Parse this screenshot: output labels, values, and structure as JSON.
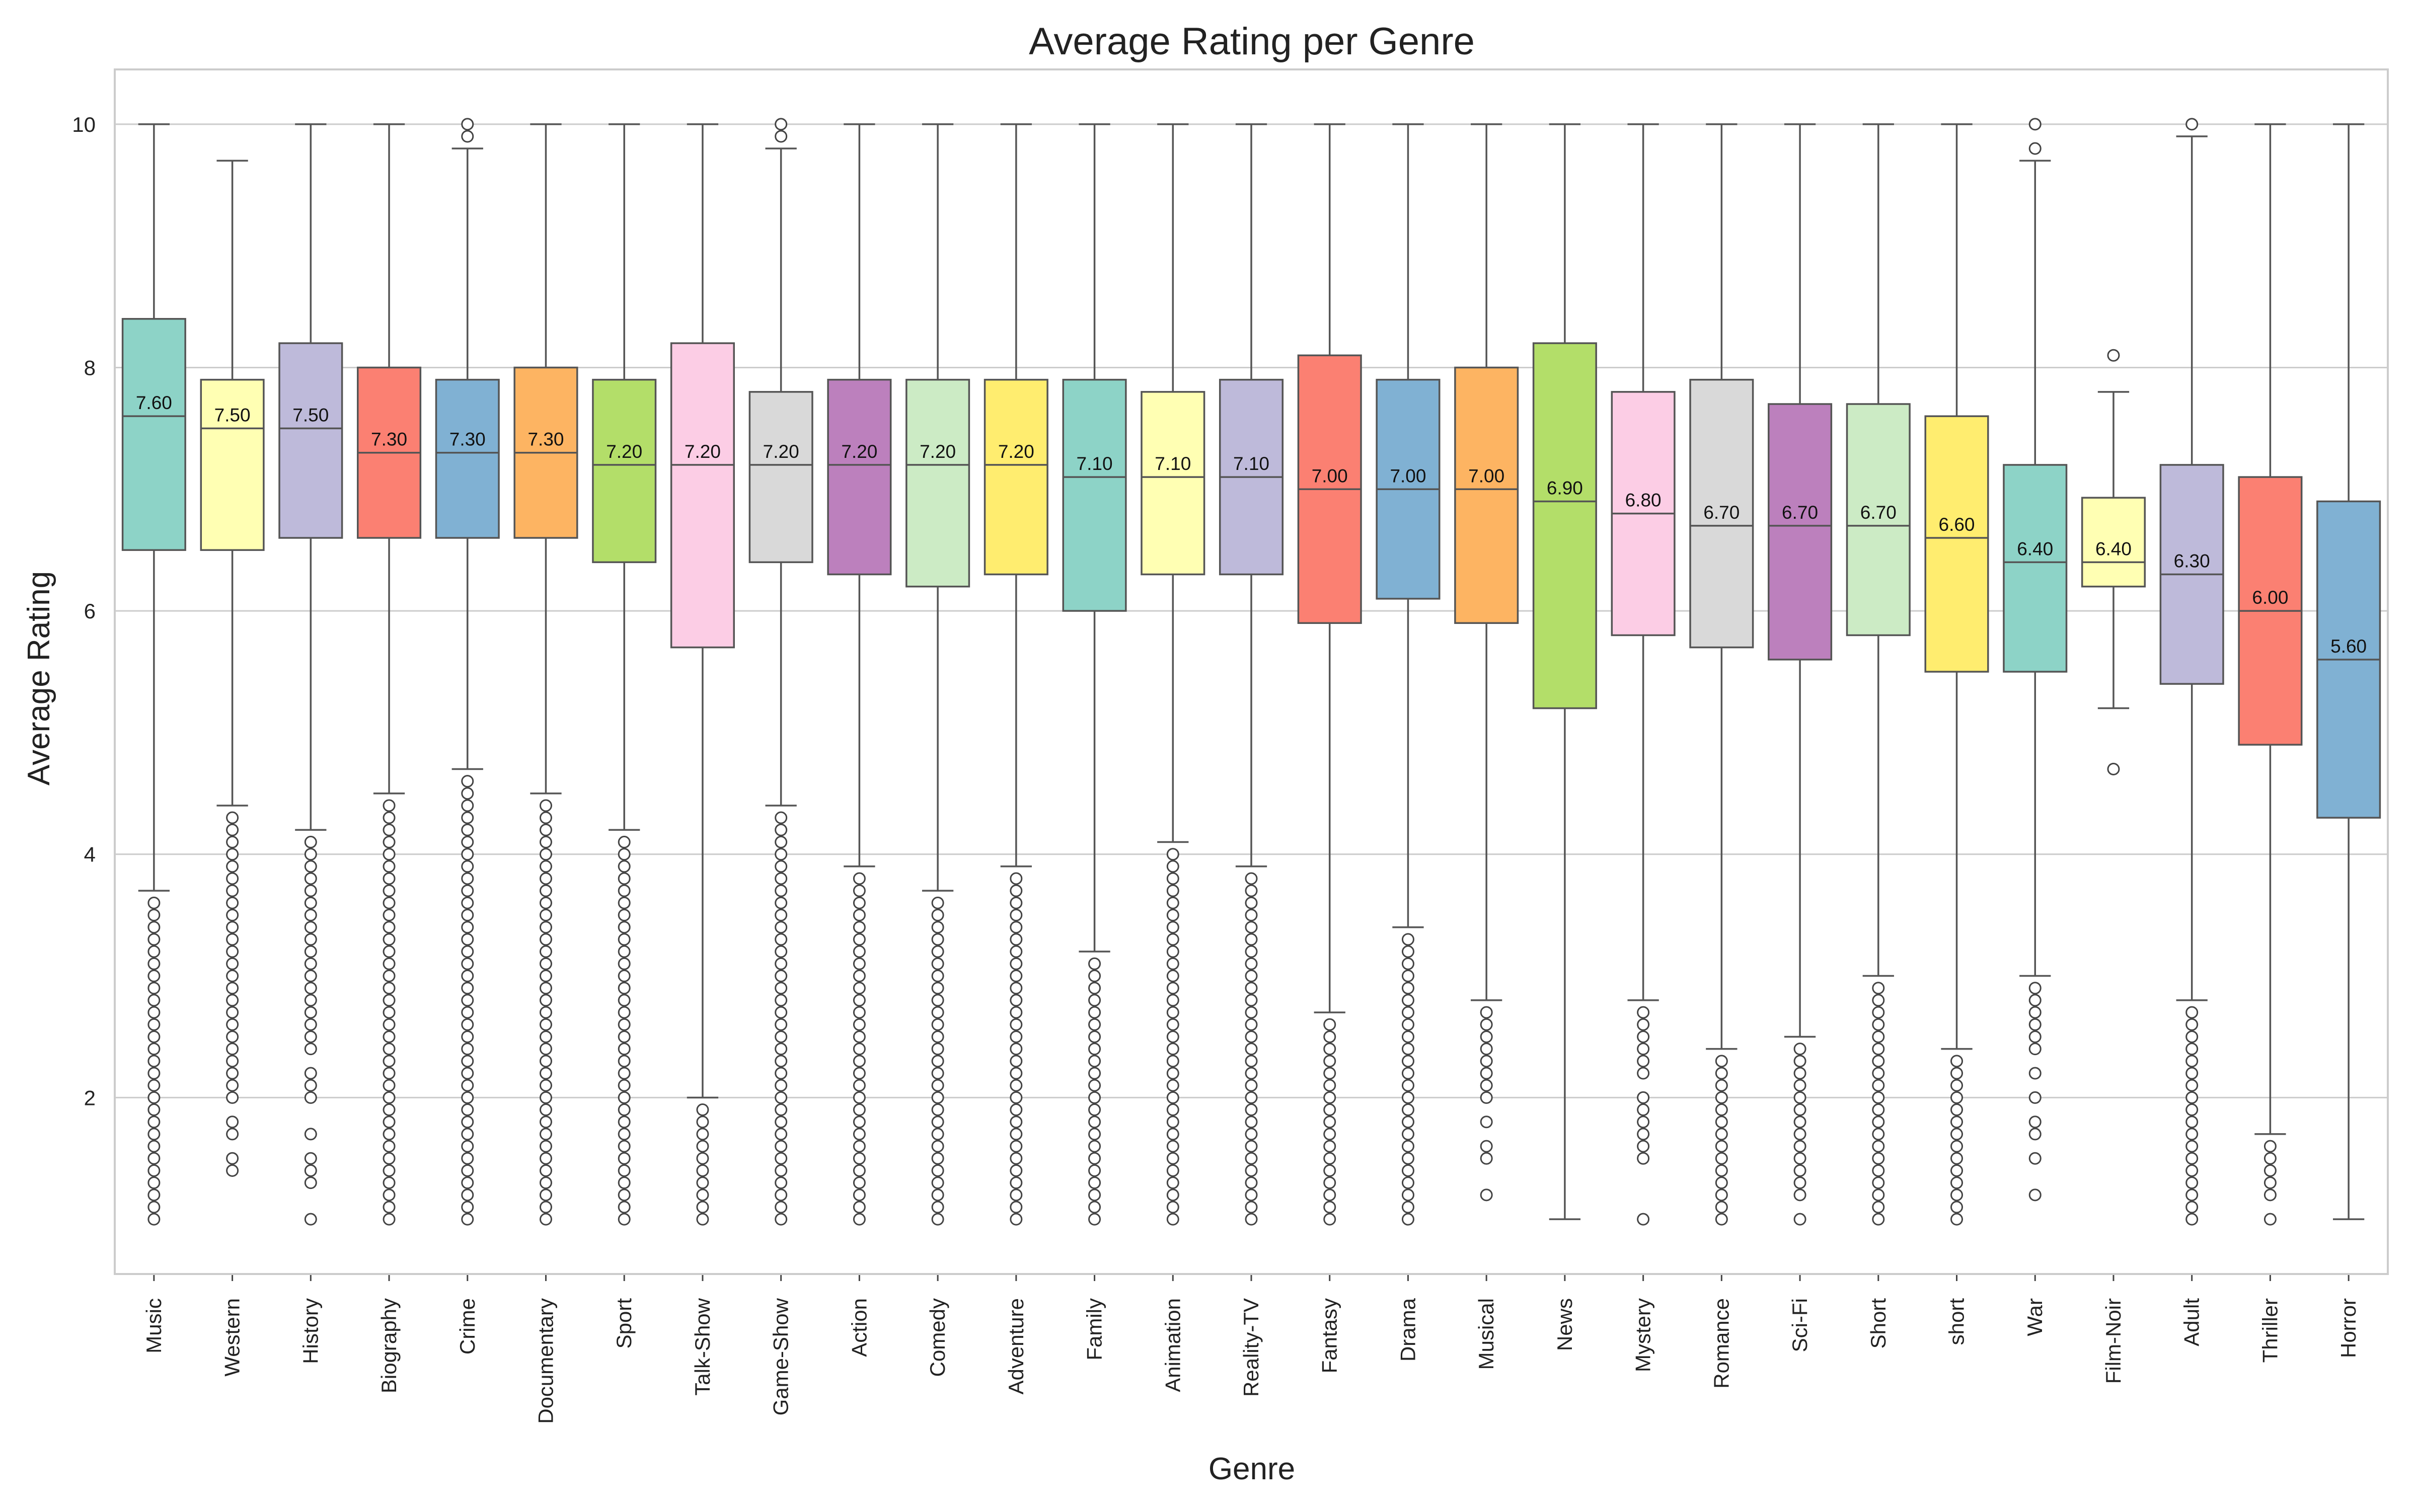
{
  "chart_data": {
    "type": "box",
    "title": "Average Rating per Genre",
    "xlabel": "Genre",
    "ylabel": "Average Rating",
    "ylim": [
      0.55,
      10.45
    ],
    "yticks": [
      2,
      4,
      6,
      8,
      10
    ],
    "grid": true,
    "categories": [
      "Music",
      "Western",
      "History",
      "Biography",
      "Crime",
      "Documentary",
      "Sport",
      "Talk-Show",
      "Game-Show",
      "Action",
      "Comedy",
      "Adventure",
      "Family",
      "Animation",
      "Reality-TV",
      "Fantasy",
      "Drama",
      "Musical",
      "News",
      "Mystery",
      "Romance",
      "Sci-Fi",
      "Short",
      "short",
      "War",
      "Film-Noir",
      "Adult",
      "Thriller",
      "Horror"
    ],
    "series": [
      {
        "category": "Music",
        "color": "#8dd3c7",
        "q1": 6.5,
        "median": 7.6,
        "q3": 8.4,
        "whisker_low": 3.7,
        "whisker_high": 10.0,
        "median_label": "7.60",
        "outliers": [
          1.0,
          1.1,
          1.2,
          1.3,
          1.4,
          1.5,
          1.6,
          1.7,
          1.8,
          1.9,
          2.0,
          2.1,
          2.2,
          2.3,
          2.4,
          2.5,
          2.6,
          2.7,
          2.8,
          2.9,
          3.0,
          3.1,
          3.2,
          3.3,
          3.4,
          3.5,
          3.6
        ]
      },
      {
        "category": "Western",
        "color": "#ffffb3",
        "q1": 6.5,
        "median": 7.5,
        "q3": 7.9,
        "whisker_low": 4.4,
        "whisker_high": 9.7,
        "median_label": "7.50",
        "outliers": [
          1.4,
          1.5,
          1.7,
          1.8,
          2.0,
          2.1,
          2.2,
          2.3,
          2.4,
          2.5,
          2.6,
          2.7,
          2.8,
          2.9,
          3.0,
          3.1,
          3.2,
          3.3,
          3.4,
          3.5,
          3.6,
          3.7,
          3.8,
          3.9,
          4.0,
          4.1,
          4.2,
          4.3
        ]
      },
      {
        "category": "History",
        "color": "#bebada",
        "q1": 6.6,
        "median": 7.5,
        "q3": 8.2,
        "whisker_low": 4.2,
        "whisker_high": 10.0,
        "median_label": "7.50",
        "outliers": [
          1.0,
          1.3,
          1.4,
          1.5,
          1.7,
          2.0,
          2.1,
          2.2,
          2.4,
          2.5,
          2.6,
          2.7,
          2.8,
          2.9,
          3.0,
          3.1,
          3.2,
          3.3,
          3.4,
          3.5,
          3.6,
          3.7,
          3.8,
          3.9,
          4.0,
          4.1
        ]
      },
      {
        "category": "Biography",
        "color": "#fb8072",
        "q1": 6.6,
        "median": 7.3,
        "q3": 8.0,
        "whisker_low": 4.5,
        "whisker_high": 10.0,
        "median_label": "7.30",
        "outliers": [
          1.0,
          1.1,
          1.2,
          1.3,
          1.4,
          1.5,
          1.6,
          1.7,
          1.8,
          1.9,
          2.0,
          2.1,
          2.2,
          2.3,
          2.4,
          2.5,
          2.6,
          2.7,
          2.8,
          2.9,
          3.0,
          3.1,
          3.2,
          3.3,
          3.4,
          3.5,
          3.6,
          3.7,
          3.8,
          3.9,
          4.0,
          4.1,
          4.2,
          4.3,
          4.4
        ]
      },
      {
        "category": "Crime",
        "color": "#80b1d3",
        "q1": 6.6,
        "median": 7.3,
        "q3": 7.9,
        "whisker_low": 4.7,
        "whisker_high": 9.8,
        "median_label": "7.30",
        "outliers": [
          1.0,
          1.1,
          1.2,
          1.3,
          1.4,
          1.5,
          1.6,
          1.7,
          1.8,
          1.9,
          2.0,
          2.1,
          2.2,
          2.3,
          2.4,
          2.5,
          2.6,
          2.7,
          2.8,
          2.9,
          3.0,
          3.1,
          3.2,
          3.3,
          3.4,
          3.5,
          3.6,
          3.7,
          3.8,
          3.9,
          4.0,
          4.1,
          4.2,
          4.3,
          4.4,
          4.5,
          4.6,
          9.9,
          10.0
        ]
      },
      {
        "category": "Documentary",
        "color": "#fdb462",
        "q1": 6.6,
        "median": 7.3,
        "q3": 8.0,
        "whisker_low": 4.5,
        "whisker_high": 10.0,
        "median_label": "7.30",
        "outliers": [
          1.0,
          1.1,
          1.2,
          1.3,
          1.4,
          1.5,
          1.6,
          1.7,
          1.8,
          1.9,
          2.0,
          2.1,
          2.2,
          2.3,
          2.4,
          2.5,
          2.6,
          2.7,
          2.8,
          2.9,
          3.0,
          3.1,
          3.2,
          3.3,
          3.4,
          3.5,
          3.6,
          3.7,
          3.8,
          3.9,
          4.0,
          4.1,
          4.2,
          4.3,
          4.4
        ]
      },
      {
        "category": "Sport",
        "color": "#b3de69",
        "q1": 6.4,
        "median": 7.2,
        "q3": 7.9,
        "whisker_low": 4.2,
        "whisker_high": 10.0,
        "median_label": "7.20",
        "outliers": [
          1.0,
          1.1,
          1.2,
          1.3,
          1.4,
          1.5,
          1.6,
          1.7,
          1.8,
          1.9,
          2.0,
          2.1,
          2.2,
          2.3,
          2.4,
          2.5,
          2.6,
          2.7,
          2.8,
          2.9,
          3.0,
          3.1,
          3.2,
          3.3,
          3.4,
          3.5,
          3.6,
          3.7,
          3.8,
          3.9,
          4.0,
          4.1
        ]
      },
      {
        "category": "Talk-Show",
        "color": "#fccde5",
        "q1": 5.7,
        "median": 7.2,
        "q3": 8.2,
        "whisker_low": 2.0,
        "whisker_high": 10.0,
        "median_label": "7.20",
        "outliers": [
          1.0,
          1.1,
          1.2,
          1.3,
          1.4,
          1.5,
          1.6,
          1.7,
          1.8,
          1.9
        ]
      },
      {
        "category": "Game-Show",
        "color": "#d9d9d9",
        "q1": 6.4,
        "median": 7.2,
        "q3": 7.8,
        "whisker_low": 4.4,
        "whisker_high": 9.8,
        "median_label": "7.20",
        "outliers": [
          1.0,
          1.1,
          1.2,
          1.3,
          1.4,
          1.5,
          1.6,
          1.7,
          1.8,
          1.9,
          2.0,
          2.1,
          2.2,
          2.3,
          2.4,
          2.5,
          2.6,
          2.7,
          2.8,
          2.9,
          3.0,
          3.1,
          3.2,
          3.3,
          3.4,
          3.5,
          3.6,
          3.7,
          3.8,
          3.9,
          4.0,
          4.1,
          4.2,
          4.3,
          9.9,
          10.0
        ]
      },
      {
        "category": "Action",
        "color": "#bc80bd",
        "q1": 6.3,
        "median": 7.2,
        "q3": 7.9,
        "whisker_low": 3.9,
        "whisker_high": 10.0,
        "median_label": "7.20",
        "outliers": [
          1.0,
          1.1,
          1.2,
          1.3,
          1.4,
          1.5,
          1.6,
          1.7,
          1.8,
          1.9,
          2.0,
          2.1,
          2.2,
          2.3,
          2.4,
          2.5,
          2.6,
          2.7,
          2.8,
          2.9,
          3.0,
          3.1,
          3.2,
          3.3,
          3.4,
          3.5,
          3.6,
          3.7,
          3.8
        ]
      },
      {
        "category": "Comedy",
        "color": "#ccebc5",
        "q1": 6.2,
        "median": 7.2,
        "q3": 7.9,
        "whisker_low": 3.7,
        "whisker_high": 10.0,
        "median_label": "7.20",
        "outliers": [
          1.0,
          1.1,
          1.2,
          1.3,
          1.4,
          1.5,
          1.6,
          1.7,
          1.8,
          1.9,
          2.0,
          2.1,
          2.2,
          2.3,
          2.4,
          2.5,
          2.6,
          2.7,
          2.8,
          2.9,
          3.0,
          3.1,
          3.2,
          3.3,
          3.4,
          3.5,
          3.6
        ]
      },
      {
        "category": "Adventure",
        "color": "#ffed6f",
        "q1": 6.3,
        "median": 7.2,
        "q3": 7.9,
        "whisker_low": 3.9,
        "whisker_high": 10.0,
        "median_label": "7.20",
        "outliers": [
          1.0,
          1.1,
          1.2,
          1.3,
          1.4,
          1.5,
          1.6,
          1.7,
          1.8,
          1.9,
          2.0,
          2.1,
          2.2,
          2.3,
          2.4,
          2.5,
          2.6,
          2.7,
          2.8,
          2.9,
          3.0,
          3.1,
          3.2,
          3.3,
          3.4,
          3.5,
          3.6,
          3.7,
          3.8
        ]
      },
      {
        "category": "Family",
        "color": "#8dd3c7",
        "q1": 6.0,
        "median": 7.1,
        "q3": 7.9,
        "whisker_low": 3.2,
        "whisker_high": 10.0,
        "median_label": "7.10",
        "outliers": [
          1.0,
          1.1,
          1.2,
          1.3,
          1.4,
          1.5,
          1.6,
          1.7,
          1.8,
          1.9,
          2.0,
          2.1,
          2.2,
          2.3,
          2.4,
          2.5,
          2.6,
          2.7,
          2.8,
          2.9,
          3.0,
          3.1
        ]
      },
      {
        "category": "Animation",
        "color": "#ffffb3",
        "q1": 6.3,
        "median": 7.1,
        "q3": 7.8,
        "whisker_low": 4.1,
        "whisker_high": 10.0,
        "median_label": "7.10",
        "outliers": [
          1.0,
          1.1,
          1.2,
          1.3,
          1.4,
          1.5,
          1.6,
          1.7,
          1.8,
          1.9,
          2.0,
          2.1,
          2.2,
          2.3,
          2.4,
          2.5,
          2.6,
          2.7,
          2.8,
          2.9,
          3.0,
          3.1,
          3.2,
          3.3,
          3.4,
          3.5,
          3.6,
          3.7,
          3.8,
          3.9,
          4.0
        ]
      },
      {
        "category": "Reality-TV",
        "color": "#bebada",
        "q1": 6.3,
        "median": 7.1,
        "q3": 7.9,
        "whisker_low": 3.9,
        "whisker_high": 10.0,
        "median_label": "7.10",
        "outliers": [
          1.0,
          1.1,
          1.2,
          1.3,
          1.4,
          1.5,
          1.6,
          1.7,
          1.8,
          1.9,
          2.0,
          2.1,
          2.2,
          2.3,
          2.4,
          2.5,
          2.6,
          2.7,
          2.8,
          2.9,
          3.0,
          3.1,
          3.2,
          3.3,
          3.4,
          3.5,
          3.6,
          3.7,
          3.8
        ]
      },
      {
        "category": "Fantasy",
        "color": "#fb8072",
        "q1": 5.9,
        "median": 7.0,
        "q3": 8.1,
        "whisker_low": 2.7,
        "whisker_high": 10.0,
        "median_label": "7.00",
        "outliers": [
          1.0,
          1.1,
          1.2,
          1.3,
          1.4,
          1.5,
          1.6,
          1.7,
          1.8,
          1.9,
          2.0,
          2.1,
          2.2,
          2.3,
          2.4,
          2.5,
          2.6
        ]
      },
      {
        "category": "Drama",
        "color": "#80b1d3",
        "q1": 6.1,
        "median": 7.0,
        "q3": 7.9,
        "whisker_low": 3.4,
        "whisker_high": 10.0,
        "median_label": "7.00",
        "outliers": [
          1.0,
          1.1,
          1.2,
          1.3,
          1.4,
          1.5,
          1.6,
          1.7,
          1.8,
          1.9,
          2.0,
          2.1,
          2.2,
          2.3,
          2.4,
          2.5,
          2.6,
          2.7,
          2.8,
          2.9,
          3.0,
          3.1,
          3.2,
          3.3
        ]
      },
      {
        "category": "Musical",
        "color": "#fdb462",
        "q1": 5.9,
        "median": 7.0,
        "q3": 8.0,
        "whisker_low": 2.8,
        "whisker_high": 10.0,
        "median_label": "7.00",
        "outliers": [
          1.2,
          1.5,
          1.6,
          1.8,
          2.0,
          2.1,
          2.2,
          2.3,
          2.4,
          2.5,
          2.6,
          2.7
        ]
      },
      {
        "category": "News",
        "color": "#b3de69",
        "q1": 5.2,
        "median": 6.9,
        "q3": 8.2,
        "whisker_low": 1.0,
        "whisker_high": 10.0,
        "median_label": "6.90",
        "outliers": []
      },
      {
        "category": "Mystery",
        "color": "#fccde5",
        "q1": 5.8,
        "median": 6.8,
        "q3": 7.8,
        "whisker_low": 2.8,
        "whisker_high": 10.0,
        "median_label": "6.80",
        "outliers": [
          1.0,
          1.5,
          1.6,
          1.7,
          1.8,
          1.9,
          2.0,
          2.2,
          2.3,
          2.4,
          2.5,
          2.6,
          2.7
        ]
      },
      {
        "category": "Romance",
        "color": "#d9d9d9",
        "q1": 5.7,
        "median": 6.7,
        "q3": 7.9,
        "whisker_low": 2.4,
        "whisker_high": 10.0,
        "median_label": "6.70",
        "outliers": [
          1.0,
          1.1,
          1.2,
          1.3,
          1.4,
          1.5,
          1.6,
          1.7,
          1.8,
          1.9,
          2.0,
          2.1,
          2.2,
          2.3
        ]
      },
      {
        "category": "Sci-Fi",
        "color": "#bc80bd",
        "q1": 5.6,
        "median": 6.7,
        "q3": 7.7,
        "whisker_low": 2.5,
        "whisker_high": 10.0,
        "median_label": "6.70",
        "outliers": [
          1.0,
          1.2,
          1.3,
          1.4,
          1.5,
          1.6,
          1.7,
          1.8,
          1.9,
          2.0,
          2.1,
          2.2,
          2.3,
          2.4
        ]
      },
      {
        "category": "Short",
        "color": "#ccebc5",
        "q1": 5.8,
        "median": 6.7,
        "q3": 7.7,
        "whisker_low": 3.0,
        "whisker_high": 10.0,
        "median_label": "6.70",
        "outliers": [
          1.0,
          1.1,
          1.2,
          1.3,
          1.4,
          1.5,
          1.6,
          1.7,
          1.8,
          1.9,
          2.0,
          2.1,
          2.2,
          2.3,
          2.4,
          2.5,
          2.6,
          2.7,
          2.8,
          2.9
        ]
      },
      {
        "category": "short",
        "color": "#ffed6f",
        "q1": 5.5,
        "median": 6.6,
        "q3": 7.6,
        "whisker_low": 2.4,
        "whisker_high": 10.0,
        "median_label": "6.60",
        "outliers": [
          1.0,
          1.1,
          1.2,
          1.3,
          1.4,
          1.5,
          1.6,
          1.7,
          1.8,
          1.9,
          2.0,
          2.1,
          2.2,
          2.3
        ]
      },
      {
        "category": "War",
        "color": "#8dd3c7",
        "q1": 5.5,
        "median": 6.4,
        "q3": 7.2,
        "whisker_low": 3.0,
        "whisker_high": 9.7,
        "median_label": "6.40",
        "outliers": [
          1.2,
          1.5,
          1.7,
          1.8,
          2.0,
          2.2,
          2.4,
          2.5,
          2.6,
          2.7,
          2.8,
          2.9,
          9.8,
          10.0
        ]
      },
      {
        "category": "Film-Noir",
        "color": "#ffffb3",
        "q1": 6.2,
        "median": 6.4,
        "q3": 6.93,
        "whisker_low": 5.2,
        "whisker_high": 7.8,
        "median_label": "6.40",
        "outliers": [
          4.7,
          8.1
        ]
      },
      {
        "category": "Adult",
        "color": "#bebada",
        "q1": 5.4,
        "median": 6.3,
        "q3": 7.2,
        "whisker_low": 2.8,
        "whisker_high": 9.9,
        "median_label": "6.30",
        "outliers": [
          1.0,
          1.1,
          1.2,
          1.3,
          1.4,
          1.5,
          1.6,
          1.7,
          1.8,
          1.9,
          2.0,
          2.1,
          2.2,
          2.3,
          2.4,
          2.5,
          2.6,
          2.7,
          10.0
        ]
      },
      {
        "category": "Thriller",
        "color": "#fb8072",
        "q1": 4.9,
        "median": 6.0,
        "q3": 7.1,
        "whisker_low": 1.7,
        "whisker_high": 10.0,
        "median_label": "6.00",
        "outliers": [
          1.0,
          1.2,
          1.3,
          1.4,
          1.5,
          1.6
        ]
      },
      {
        "category": "Horror",
        "color": "#80b1d3",
        "q1": 4.3,
        "median": 5.6,
        "q3": 6.9,
        "whisker_low": 1.0,
        "whisker_high": 10.0,
        "median_label": "5.60",
        "outliers": []
      }
    ]
  }
}
